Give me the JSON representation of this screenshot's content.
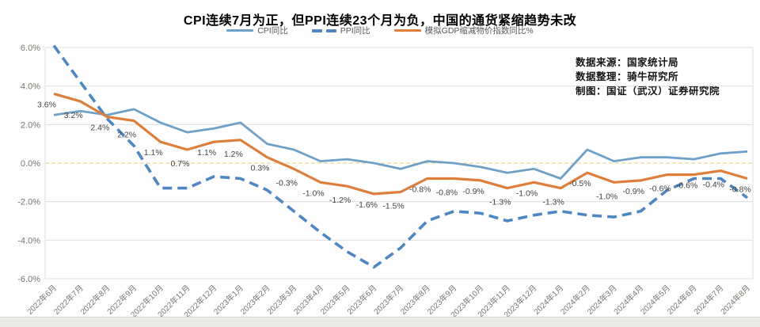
{
  "title": "CPI连续7月为正，但PPI连续23个月为负，中国的通货紧缩趋势未改",
  "legend": [
    {
      "label": "CPI同比",
      "color": "#6FA0C8",
      "style": "solid"
    },
    {
      "label": "PPI同比",
      "color": "#4E86C2",
      "style": "dashed"
    },
    {
      "label": "模拟GDP缩减物价指数同比%",
      "color": "#DD7E3B",
      "style": "solid"
    }
  ],
  "annotation": {
    "lines": [
      "数据来源：国家统计局",
      "数据整理：骑牛研究所",
      "制图：国证（武汉）证券研究院"
    ]
  },
  "colors": {
    "grid": "#dedede",
    "zero_line": "#e9ce79",
    "axis_text": "#77776f",
    "data_label": "#444444"
  },
  "chart_data": {
    "type": "line",
    "title": "CPI连续7月为正，但PPI连续23个月为负，中国的通货紧缩趋势未改",
    "categories": [
      "2022年6月",
      "2022年7月",
      "2022年8月",
      "2022年9月",
      "2022年10月",
      "2022年11月",
      "2022年12月",
      "2023年1月",
      "2023年2月",
      "2023年3月",
      "2023年4月",
      "2023年5月",
      "2023年6月",
      "2023年7月",
      "2023年8月",
      "2023年9月",
      "2023年10月",
      "2023年11月",
      "2023年12月",
      "2024年1月",
      "2024年2月",
      "2024年3月",
      "2024年4月",
      "2024年5月",
      "2024年6月",
      "2024年7月",
      "2024年8月"
    ],
    "series": [
      {
        "name": "CPI同比",
        "color": "#6FA0C8",
        "style": "solid",
        "data_labels": false,
        "values": [
          2.5,
          2.7,
          2.5,
          2.8,
          2.1,
          1.6,
          1.8,
          2.1,
          1.0,
          0.7,
          0.1,
          0.2,
          0.0,
          -0.3,
          0.1,
          0.0,
          -0.2,
          -0.5,
          -0.3,
          -0.8,
          0.7,
          0.1,
          0.3,
          0.3,
          0.2,
          0.5,
          0.6
        ]
      },
      {
        "name": "PPI同比",
        "color": "#4E86C2",
        "style": "dashed",
        "data_labels": false,
        "values": [
          6.1,
          4.2,
          2.3,
          0.9,
          -1.3,
          -1.3,
          -0.7,
          -0.8,
          -1.4,
          -2.5,
          -3.6,
          -4.6,
          -5.4,
          -4.4,
          -3.0,
          -2.5,
          -2.6,
          -3.0,
          -2.7,
          -2.5,
          -2.7,
          -2.8,
          -2.5,
          -1.4,
          -0.8,
          -0.8,
          -1.8
        ]
      },
      {
        "name": "模拟GDP缩减物价指数同比%",
        "color": "#DD7E3B",
        "style": "solid",
        "data_labels": true,
        "values": [
          3.6,
          3.2,
          2.4,
          2.2,
          1.1,
          0.7,
          1.1,
          1.2,
          0.3,
          -0.3,
          -1.0,
          -1.2,
          -1.6,
          -1.5,
          -0.8,
          -0.8,
          -0.9,
          -1.3,
          -1.0,
          -1.3,
          -0.5,
          -1.0,
          -0.9,
          -0.6,
          -0.6,
          -0.4,
          -0.8
        ]
      }
    ],
    "ylim": [
      -6,
      6
    ],
    "yticks": [
      "6.0%",
      "4.0%",
      "2.0%",
      "0.0%",
      "-2.0%",
      "-4.0%",
      "-6.0%"
    ],
    "grid": "horizontal",
    "zero_line": "dashed-gold",
    "legend_position": "top-center",
    "xlabel": "",
    "ylabel": ""
  }
}
